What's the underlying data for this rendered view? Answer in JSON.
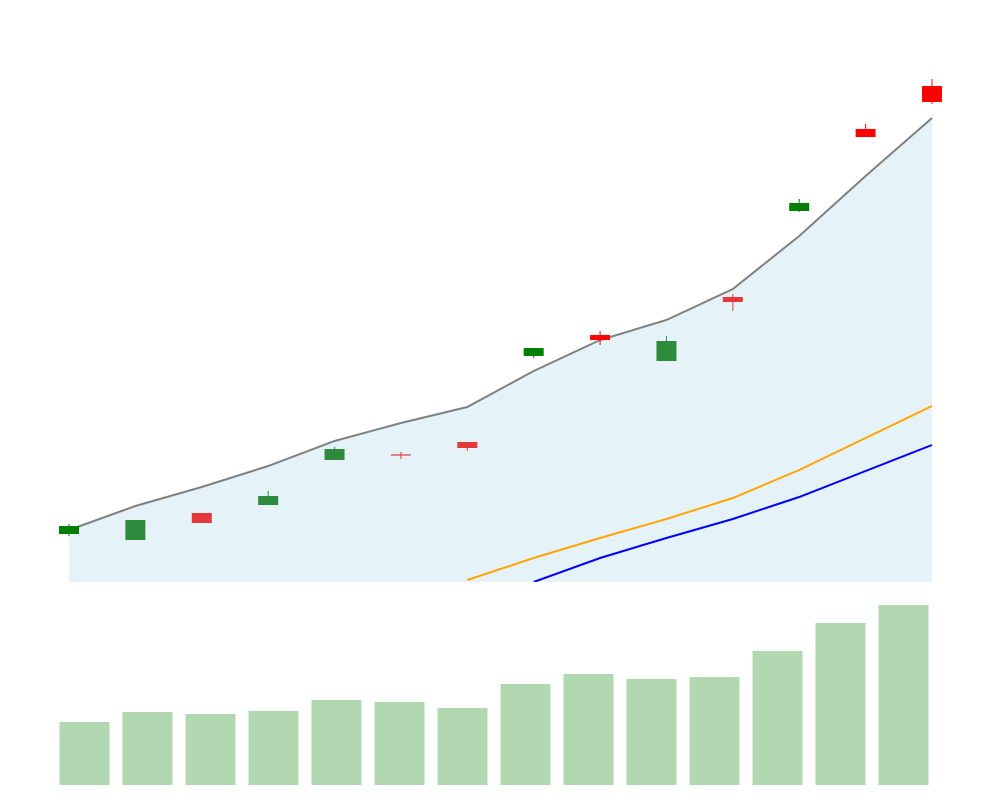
{
  "chart_data": {
    "type": "candlestick",
    "categories": [
      null,
      null,
      null,
      null,
      null,
      null,
      null,
      null,
      null,
      null,
      null,
      null,
      null,
      null
    ],
    "open": [
      12,
      10.5,
      17.25,
      19.25,
      30.5,
      31.9,
      35,
      56.5,
      61.75,
      55.25,
      71.25,
      92.75,
      113.25,
      124
    ],
    "high": [
      14.5,
      15.5,
      17.25,
      22.75,
      33.75,
      32.5,
      35,
      58.5,
      62.75,
      61.5,
      72,
      95.75,
      114.5,
      125.75
    ],
    "low": [
      11.5,
      10.5,
      14.75,
      19.25,
      30.5,
      30.75,
      32.75,
      56,
      59.25,
      55.25,
      67.75,
      92.5,
      111.25,
      119.5
    ],
    "close": [
      14,
      15.5,
      14.75,
      21.5,
      33.25,
      31.6,
      33.5,
      58.5,
      60.5,
      60.25,
      70,
      94.75,
      111.25,
      120
    ],
    "candle_colors": [
      "#008000",
      "#2e8b3e",
      "#e5383b",
      "#2e8b3e",
      "#2e8b3e",
      "#e5383b",
      "#e5383b",
      "#008000",
      "#ff0000",
      "#2e8b3e",
      "#e5383b",
      "#008000",
      "#ff0000",
      "#ff0000"
    ],
    "ylim": [
      0,
      128
    ],
    "series": [
      {
        "color": "#808080",
        "fill": "#add8e6",
        "values": [
          13,
          19,
          23.75,
          29,
          35.25,
          39.75,
          43.75,
          52.75,
          60.5,
          65.5,
          73.25,
          86.5,
          101.5,
          116
        ]
      },
      {
        "color": "#ffa500",
        "values": [
          null,
          null,
          null,
          null,
          null,
          null,
          0.5,
          6,
          11,
          15.75,
          21,
          28,
          36,
          44
        ]
      },
      {
        "color": "#0000ff",
        "values": [
          null,
          null,
          null,
          null,
          null,
          null,
          null,
          0,
          6,
          11,
          15.75,
          21.25,
          27.75,
          34.25
        ]
      }
    ],
    "volume": {
      "color": "#b2d8b2",
      "ylim": [
        0,
        180
      ],
      "values": [
        63,
        73,
        71,
        74,
        85,
        83,
        77,
        101,
        111,
        106,
        108,
        134,
        162,
        180
      ]
    }
  }
}
